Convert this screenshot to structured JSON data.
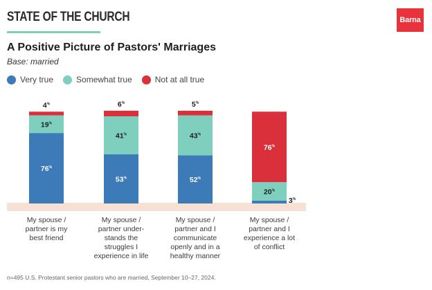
{
  "header": {
    "section_label": "STATE OF THE CHURCH",
    "logo_text": "Barna"
  },
  "title": "A Positive Picture of Pastors' Marriages",
  "subtitle": "Base: married",
  "footnote": "n=495 U.S. Protestant senior pastors who are married, September 10–27, 2024.",
  "colors": {
    "very_true": "#3d7ab8",
    "somewhat_true": "#7fcfbe",
    "not_at_all_true": "#d9303c",
    "baseline": "#f7e1d5",
    "accent_rule": "#7fcfbe",
    "logo": "#e8323c"
  },
  "chart_data": {
    "type": "bar",
    "stacked": true,
    "unit": "%",
    "ylim": [
      0,
      100
    ],
    "grid": false,
    "legend_position": "top-left",
    "categories": [
      "My spouse / partner is my best friend",
      "My spouse / partner under-stands the struggles I experience in life",
      "My spouse / partner and I communicate openly and in a healthy manner",
      "My spouse / partner and I experience a lot of conflict"
    ],
    "category_lines": [
      [
        "My spouse /",
        "partner is my",
        "best friend"
      ],
      [
        "My spouse /",
        "partner under-",
        "stands the",
        "struggles I",
        "experience in life"
      ],
      [
        "My spouse /",
        "partner and I",
        "communicate",
        "openly and in a",
        "healthy manner"
      ],
      [
        "My spouse /",
        "partner and I",
        "experience a lot",
        "of conflict"
      ]
    ],
    "series": [
      {
        "name": "Very true",
        "values": [
          76,
          53,
          52,
          3
        ]
      },
      {
        "name": "Somewhat true",
        "values": [
          19,
          41,
          43,
          20
        ]
      },
      {
        "name": "Not at all true",
        "values": [
          4,
          6,
          5,
          76
        ]
      }
    ]
  }
}
